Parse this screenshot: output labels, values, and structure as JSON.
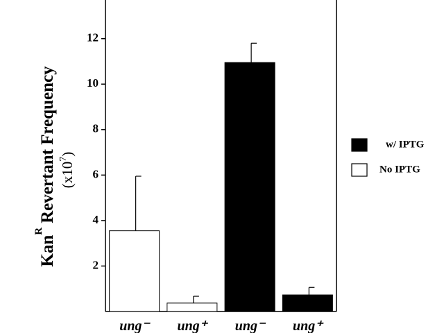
{
  "chart_data": {
    "type": "bar",
    "y_label": {
      "main": "Kan",
      "sup": "R",
      "rest": "Revertant  Frequency"
    },
    "y_unit": {
      "main": "(x10",
      "sup": "7",
      "end": ")"
    },
    "categories": [
      "ung⁻",
      "ung⁺",
      "ung⁻",
      "ung⁺"
    ],
    "series": [
      {
        "name": "w/ IPTG",
        "color": "#000000",
        "values": [
          null,
          null,
          10.95,
          0.73
        ],
        "errors": [
          null,
          null,
          0.85,
          0.33
        ]
      },
      {
        "name": "No IPTG",
        "color": "#ffffff",
        "values": [
          3.55,
          0.37,
          null,
          null
        ],
        "errors": [
          2.4,
          0.3,
          null,
          null
        ]
      }
    ],
    "ylim": [
      0,
      13.7
    ],
    "yticks": [
      2,
      4,
      6,
      8,
      10,
      12
    ],
    "legend": "right"
  }
}
